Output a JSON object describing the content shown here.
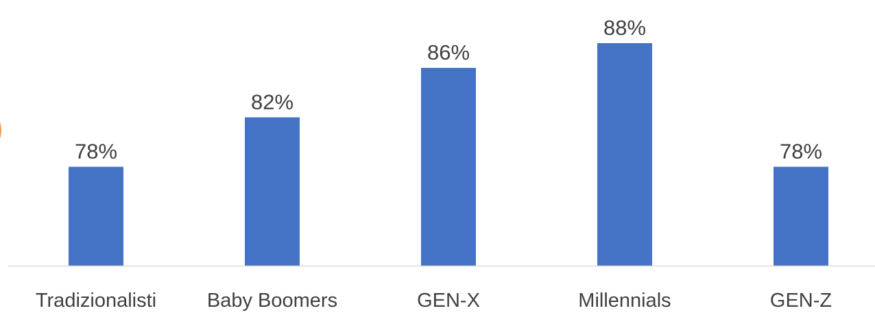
{
  "chart_data": {
    "type": "bar",
    "categories": [
      "Tradizionalisti",
      "Baby Boomers",
      "GEN-X",
      "Millennials",
      "GEN-Z"
    ],
    "values": [
      78,
      82,
      86,
      88,
      78
    ],
    "value_labels": [
      "78%",
      "82%",
      "86%",
      "88%",
      "78%"
    ],
    "title": "",
    "xlabel": "",
    "ylabel": "",
    "ylim": [
      70,
      90
    ],
    "grid": false,
    "y_axis_visible": false,
    "legend": "none",
    "bar_color": "#4472C4",
    "axis_line_color": "#D9D9D9",
    "text_color": "#404040"
  }
}
